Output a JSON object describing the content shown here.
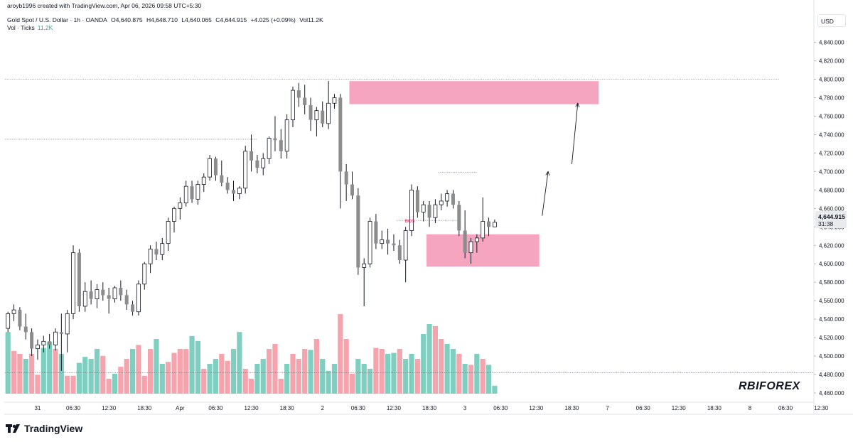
{
  "header": {
    "attribution": "aroyb1996 created with TradingView.com, Apr 06, 2026 09:58 UTC+5:30",
    "symbol": "Gold Spot / U.S. Dollar · 1h · OANDA",
    "open": "O4,640.875",
    "high": "H4,648.710",
    "low": "L4,640.065",
    "close": "C4,644.915",
    "change": "+4.025 (+0.09%)",
    "volume": "Vol11.2K",
    "vol_label": "Vol · Ticks",
    "vol_value": "11.2K"
  },
  "currency_button": "USD",
  "brand": "TradingView",
  "watermark": "RBIFOREX",
  "price_tag": {
    "price": "4,644.915",
    "countdown": "31:38"
  },
  "bos_label": "BOS",
  "colors": {
    "bull": "#ffffff",
    "bear": "#8c8c8c",
    "vol_up": "#7fcfc1",
    "vol_down": "#f5a3ad",
    "zone": "#f595b6",
    "bos": "#e91e63"
  },
  "chart_data": {
    "type": "candlestick",
    "y_axis": {
      "min": 4450,
      "max": 4852,
      "ticks": [
        "4,460.000",
        "4,480.000",
        "4,500.000",
        "4,520.000",
        "4,540.000",
        "4,560.000",
        "4,580.000",
        "4,600.000",
        "4,620.000",
        "4,640.000",
        "4,660.000",
        "4,680.000",
        "4,700.000",
        "4,720.000",
        "4,740.000",
        "4,760.000",
        "4,780.000",
        "4,800.000",
        "4,820.000",
        "4,840.000"
      ]
    },
    "x_axis": {
      "ticks": [
        {
          "label": "31",
          "bar": 5
        },
        {
          "label": "06:30",
          "bar": 11
        },
        {
          "label": "12:30",
          "bar": 17
        },
        {
          "label": "18:30",
          "bar": 23
        },
        {
          "label": "Apr",
          "bar": 29
        },
        {
          "label": "06:30",
          "bar": 35
        },
        {
          "label": "12:30",
          "bar": 41
        },
        {
          "label": "18:30",
          "bar": 47
        },
        {
          "label": "2",
          "bar": 53
        },
        {
          "label": "06:30",
          "bar": 59
        },
        {
          "label": "12:30",
          "bar": 65
        },
        {
          "label": "18:30",
          "bar": 71
        },
        {
          "label": "3",
          "bar": 77
        },
        {
          "label": "06:30",
          "bar": 83
        },
        {
          "label": "12:30",
          "bar": 89
        },
        {
          "label": "18:30",
          "bar": 95
        },
        {
          "label": "7",
          "bar": 101
        },
        {
          "label": "06:30",
          "bar": 107
        },
        {
          "label": "12:30",
          "bar": 113
        },
        {
          "label": "18:30",
          "bar": 119
        },
        {
          "label": "8",
          "bar": 125
        },
        {
          "label": "06:30",
          "bar": 131
        },
        {
          "label": "12:30",
          "bar": 137
        }
      ]
    },
    "candles": [
      [
        4530,
        4548,
        4526,
        4546
      ],
      [
        4546,
        4556,
        4538,
        4550
      ],
      [
        4550,
        4553,
        4528,
        4532
      ],
      [
        4532,
        4546,
        4518,
        4526
      ],
      [
        4526,
        4530,
        4500,
        4508
      ],
      [
        4508,
        4518,
        4496,
        4512
      ],
      [
        4512,
        4522,
        4504,
        4516
      ],
      [
        4516,
        4524,
        4508,
        4512
      ],
      [
        4512,
        4530,
        4506,
        4526
      ],
      [
        4526,
        4546,
        4484,
        4524
      ],
      [
        4524,
        4550,
        4504,
        4546
      ],
      [
        4546,
        4620,
        4540,
        4612
      ],
      [
        4612,
        4616,
        4548,
        4554
      ],
      [
        4554,
        4580,
        4548,
        4570
      ],
      [
        4570,
        4582,
        4556,
        4562
      ],
      [
        4562,
        4578,
        4552,
        4572
      ],
      [
        4572,
        4580,
        4560,
        4566
      ],
      [
        4566,
        4574,
        4546,
        4562
      ],
      [
        4562,
        4576,
        4558,
        4574
      ],
      [
        4574,
        4582,
        4560,
        4566
      ],
      [
        4566,
        4572,
        4550,
        4556
      ],
      [
        4556,
        4560,
        4544,
        4548
      ],
      [
        4548,
        4582,
        4544,
        4578
      ],
      [
        4578,
        4602,
        4572,
        4600
      ],
      [
        4600,
        4620,
        4590,
        4616
      ],
      [
        4616,
        4624,
        4604,
        4610
      ],
      [
        4610,
        4628,
        4604,
        4622
      ],
      [
        4622,
        4650,
        4614,
        4646
      ],
      [
        4646,
        4662,
        4634,
        4660
      ],
      [
        4660,
        4672,
        4648,
        4666
      ],
      [
        4666,
        4690,
        4662,
        4684
      ],
      [
        4684,
        4690,
        4666,
        4670
      ],
      [
        4670,
        4690,
        4664,
        4686
      ],
      [
        4686,
        4698,
        4678,
        4694
      ],
      [
        4694,
        4718,
        4690,
        4714
      ],
      [
        4714,
        4716,
        4690,
        4696
      ],
      [
        4696,
        4712,
        4684,
        4688
      ],
      [
        4688,
        4694,
        4676,
        4680
      ],
      [
        4680,
        4690,
        4668,
        4676
      ],
      [
        4676,
        4684,
        4670,
        4682
      ],
      [
        4682,
        4728,
        4676,
        4722
      ],
      [
        4722,
        4740,
        4700,
        4712
      ],
      [
        4712,
        4718,
        4698,
        4704
      ],
      [
        4704,
        4720,
        4696,
        4714
      ],
      [
        4714,
        4738,
        4708,
        4736
      ],
      [
        4736,
        4760,
        4722,
        4734
      ],
      [
        4734,
        4746,
        4714,
        4722
      ],
      [
        4722,
        4762,
        4714,
        4756
      ],
      [
        4756,
        4792,
        4748,
        4788
      ],
      [
        4788,
        4796,
        4770,
        4780
      ],
      [
        4780,
        4794,
        4762,
        4772
      ],
      [
        4772,
        4780,
        4744,
        4756
      ],
      [
        4756,
        4770,
        4738,
        4766
      ],
      [
        4766,
        4776,
        4748,
        4752
      ],
      [
        4752,
        4798,
        4746,
        4774
      ],
      [
        4774,
        4784,
        4768,
        4780
      ],
      [
        4780,
        4784,
        4660,
        4700
      ],
      [
        4700,
        4708,
        4668,
        4686
      ],
      [
        4686,
        4700,
        4670,
        4674
      ],
      [
        4674,
        4682,
        4588,
        4596
      ],
      [
        4596,
        4606,
        4554,
        4600
      ],
      [
        4600,
        4650,
        4596,
        4646
      ],
      [
        4646,
        4654,
        4616,
        4622
      ],
      [
        4622,
        4636,
        4616,
        4626
      ],
      [
        4626,
        4638,
        4610,
        4622
      ],
      [
        4622,
        4632,
        4614,
        4620
      ],
      [
        4620,
        4626,
        4600,
        4604
      ],
      [
        4604,
        4640,
        4580,
        4636
      ],
      [
        4636,
        4686,
        4630,
        4680
      ],
      [
        4680,
        4684,
        4650,
        4656
      ],
      [
        4656,
        4668,
        4646,
        4664
      ],
      [
        4664,
        4668,
        4640,
        4650
      ],
      [
        4650,
        4670,
        4644,
        4664
      ],
      [
        4664,
        4676,
        4658,
        4668
      ],
      [
        4668,
        4680,
        4662,
        4676
      ],
      [
        4676,
        4680,
        4660,
        4664
      ],
      [
        4664,
        4668,
        4630,
        4636
      ],
      [
        4636,
        4658,
        4606,
        4612
      ],
      [
        4612,
        4628,
        4600,
        4624
      ],
      [
        4624,
        4632,
        4612,
        4628
      ],
      [
        4628,
        4672,
        4624,
        4646
      ],
      [
        4646,
        4650,
        4630,
        4640
      ],
      [
        4640,
        4648,
        4640,
        4645
      ]
    ],
    "volume_heights": [
      0.62,
      0.43,
      0.4,
      0.35,
      0.4,
      0.19,
      0.46,
      0.52,
      0.45,
      0.4,
      0.18,
      0.18,
      0.31,
      0.37,
      0.35,
      0.45,
      0.38,
      0.15,
      0.2,
      0.27,
      0.35,
      0.45,
      0.49,
      0.18,
      0.45,
      0.55,
      0.3,
      0.32,
      0.41,
      0.45,
      0.45,
      0.58,
      0.53,
      0.25,
      0.3,
      0.35,
      0.4,
      0.33,
      0.45,
      0.62,
      0.25,
      0.15,
      0.3,
      0.35,
      0.45,
      0.5,
      0.15,
      0.3,
      0.4,
      0.35,
      0.45,
      0.44,
      0.55,
      0.35,
      0.23,
      0.3,
      0.8,
      0.55,
      0.2,
      0.35,
      0.3,
      0.25,
      0.46,
      0.45,
      0.4,
      0.41,
      0.45,
      0.35,
      0.4,
      0.35,
      0.6,
      0.7,
      0.68,
      0.55,
      0.5,
      0.45,
      0.4,
      0.3,
      0.29,
      0.4,
      0.35,
      0.29,
      0.08
    ],
    "volume_colors": [
      1,
      0,
      0,
      1,
      0,
      0,
      1,
      1,
      0,
      1,
      0,
      0,
      1,
      1,
      1,
      1,
      0,
      0,
      1,
      0,
      0,
      1,
      0,
      0,
      0,
      1,
      1,
      0,
      0,
      0,
      0,
      1,
      1,
      0,
      1,
      1,
      0,
      0,
      1,
      1,
      0,
      0,
      1,
      1,
      0,
      0,
      0,
      1,
      0,
      0,
      0,
      1,
      0,
      1,
      1,
      1,
      0,
      0,
      0,
      1,
      1,
      1,
      0,
      0,
      1,
      1,
      0,
      1,
      1,
      0,
      1,
      1,
      0,
      0,
      1,
      1,
      0,
      1,
      0,
      1,
      0,
      1,
      1
    ],
    "zones": [
      {
        "from_bar": 58,
        "to_bar": 100,
        "y_top": 4798,
        "y_bottom": 4773
      },
      {
        "from_bar": 71,
        "to_bar": 90,
        "y_top": 4632,
        "y_bottom": 4597
      }
    ],
    "h_levels": [
      {
        "price": 4800,
        "from_bar": 0,
        "to_bar": 130
      },
      {
        "price": 4735,
        "from_bar": 0,
        "to_bar": 42
      },
      {
        "price": 4482,
        "from_bar": 0,
        "to_bar": 139
      },
      {
        "price": 4699,
        "from_bar": 73,
        "to_bar": 79
      },
      {
        "price": 4647,
        "from_bar": 66,
        "to_bar": 76
      }
    ],
    "arrows": [
      {
        "from_bar": 90,
        "from_y": 4652,
        "to_bar": 91,
        "to_y": 4700
      },
      {
        "from_bar": 95,
        "from_y": 4708,
        "to_bar": 96,
        "to_y": 4774
      }
    ]
  }
}
